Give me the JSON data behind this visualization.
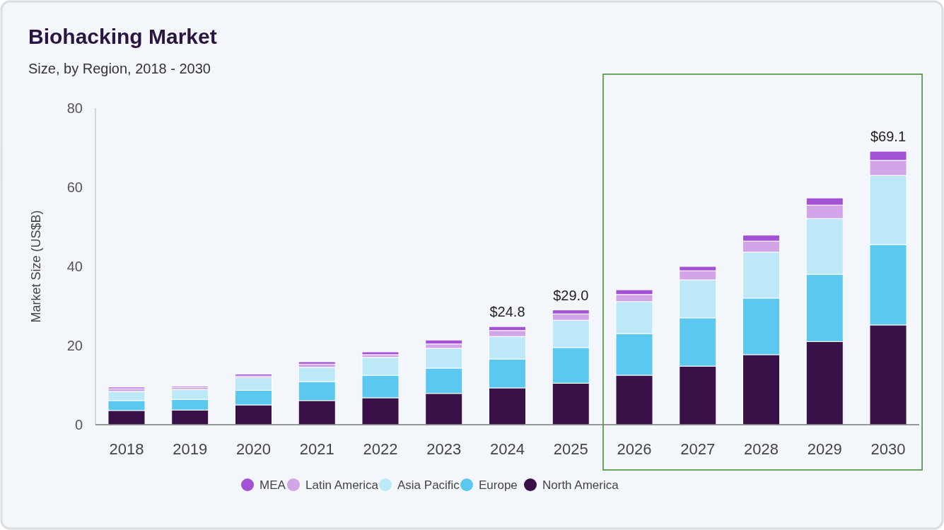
{
  "chart_data": {
    "type": "bar",
    "title": "Biohacking Market",
    "subtitle": "Size, by Region, 2018 - 2030",
    "ylabel": "Market Size (US$B)",
    "categories": [
      "2018",
      "2019",
      "2020",
      "2021",
      "2022",
      "2023",
      "2024",
      "2025",
      "2026",
      "2027",
      "2028",
      "2029",
      "2030"
    ],
    "stacked": true,
    "ylim": [
      0,
      80
    ],
    "yticks": [
      0,
      20,
      40,
      60,
      80
    ],
    "grid": false,
    "legend": "bottom",
    "series": [
      {
        "name": "North America",
        "color": "#3a1049",
        "values": [
          3.6,
          3.7,
          5.0,
          6.1,
          6.8,
          7.9,
          9.3,
          10.5,
          12.5,
          14.8,
          17.7,
          21.0,
          25.2
        ]
      },
      {
        "name": "Europe",
        "color": "#5bc8ef",
        "values": [
          2.5,
          2.7,
          3.7,
          4.8,
          5.7,
          6.4,
          7.3,
          9.0,
          10.5,
          12.2,
          14.3,
          17.0,
          20.3
        ]
      },
      {
        "name": "Asia Pacific",
        "color": "#bde8f7",
        "values": [
          2.3,
          2.5,
          3.2,
          3.6,
          4.5,
          5.0,
          5.7,
          6.9,
          8.1,
          9.6,
          11.6,
          14.1,
          17.5
        ]
      },
      {
        "name": "Latin America",
        "color": "#d2a4e8",
        "values": [
          0.7,
          0.5,
          0.4,
          0.8,
          0.7,
          1.1,
          1.5,
          1.6,
          1.8,
          2.3,
          2.8,
          3.4,
          3.8
        ]
      },
      {
        "name": "MEA",
        "color": "#a352d6",
        "values": [
          0.4,
          0.3,
          0.5,
          0.6,
          0.7,
          1.0,
          1.0,
          1.0,
          1.2,
          1.1,
          1.5,
          1.8,
          2.3
        ]
      }
    ],
    "totals": [
      null,
      null,
      null,
      null,
      null,
      null,
      "$24.8",
      "$29.0",
      null,
      null,
      null,
      null,
      "$69.1"
    ]
  }
}
